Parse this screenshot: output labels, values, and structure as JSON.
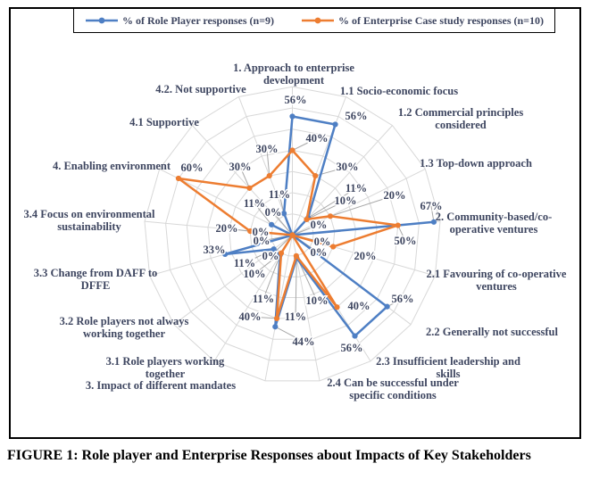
{
  "figure": {
    "caption": "FIGURE 1: Role player and Enterprise Responses about Impacts of Key Stakeholders"
  },
  "legend": {
    "items": [
      {
        "label": "% of Role Player responses (n=9)",
        "color": "#4E7FC4"
      },
      {
        "label": "% of Enterprise Case study responses (n=10)",
        "color": "#ED7D31"
      }
    ]
  },
  "chart_data": {
    "type": "radar",
    "title": "",
    "legend_position": "top",
    "grid": true,
    "axis_min": 0,
    "axis_max": 70,
    "axis_step": 10,
    "label_format": "percent",
    "grid_color": "#D8D8D8",
    "leader_color": "#A8A8A8",
    "text_color": "#3E4660",
    "categories": [
      "1. Approach to enterprise development",
      "1.1 Socio-economic focus",
      "1.2 Commercial principles considered",
      "1.3 Top-down approach",
      "2. Community-based/co-operative ventures",
      "2.1 Favouring of co-operative ventures",
      "2.2 Generally not successful",
      "2.3 Insufficient leadership and skills",
      "2.4 Can be successful under specific conditions",
      "3. Impact of different mandates",
      "3.1 Role players working together",
      "3.2 Role players not always working together",
      "3.3 Change from DAFF to DFFE",
      "3.4 Focus on environmental sustainability",
      "4. Enabling environment",
      "4.1 Supportive",
      "4.2. Not supportive"
    ],
    "series": [
      {
        "name": "% of Role Player responses (n=9)",
        "color": "#4E7FC4",
        "values": [
          56,
          56,
          11,
          0,
          67,
          0,
          56,
          56,
          11,
          44,
          11,
          11,
          33,
          0,
          11,
          0,
          11
        ]
      },
      {
        "name": "% of Enterprise Case study responses (n=10)",
        "color": "#ED7D31",
        "values": [
          40,
          30,
          10,
          20,
          50,
          20,
          0,
          40,
          10,
          40,
          10,
          0,
          0,
          20,
          60,
          30,
          30
        ]
      }
    ]
  }
}
